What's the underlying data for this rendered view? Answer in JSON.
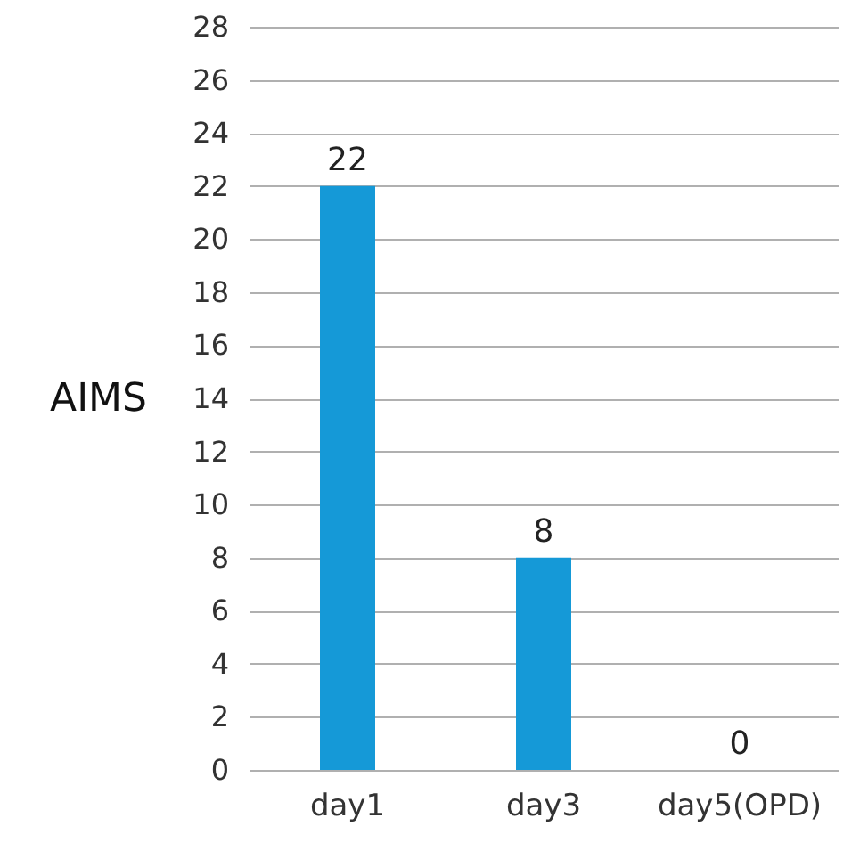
{
  "chart_data": {
    "type": "bar",
    "ylabel": "AIMS",
    "categories": [
      "day1",
      "day3",
      "day5(OPD)"
    ],
    "values": [
      22,
      8,
      0
    ],
    "color": "#1599d7",
    "ylim": [
      0,
      28
    ],
    "yticks": [
      0,
      2,
      4,
      6,
      8,
      10,
      12,
      14,
      16,
      18,
      20,
      22,
      24,
      26,
      28
    ],
    "grid": "y",
    "data_labels": true
  }
}
